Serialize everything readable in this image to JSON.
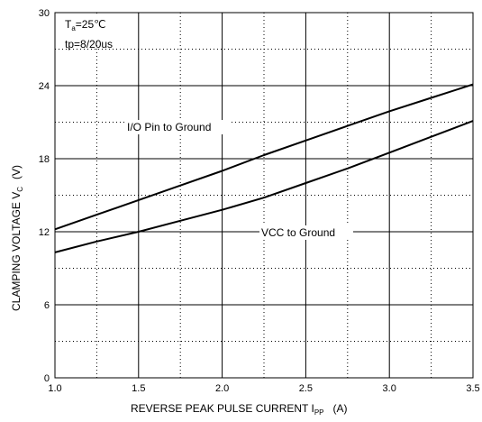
{
  "chart_data": {
    "type": "line",
    "title": "",
    "xlabel": {
      "text": "REVERSE PEAK PULSE CURRENT  I",
      "sub": "PP",
      "unit": "(A)"
    },
    "ylabel": {
      "text": "CLAMPING VOLTAGE  V",
      "sub": "C",
      "unit": "(V)"
    },
    "xlim": [
      1.0,
      3.5
    ],
    "ylim": [
      0,
      30
    ],
    "x_major_ticks": [
      1.0,
      1.5,
      2.0,
      2.5,
      3.0,
      3.5
    ],
    "x_tick_labels": [
      "1.0",
      "1.5",
      "2.0",
      "2.5",
      "3.0",
      "3.5"
    ],
    "x_minor_ticks": [
      1.25,
      1.75,
      2.25,
      2.75,
      3.25
    ],
    "y_major_ticks": [
      0,
      6,
      12,
      18,
      24,
      30
    ],
    "y_tick_labels": [
      "0",
      "6",
      "12",
      "18",
      "24",
      "30"
    ],
    "y_minor_ticks": [
      3,
      9,
      15,
      21,
      27
    ],
    "grid": true,
    "legend": "none",
    "series": [
      {
        "name": "I/O Pin to Ground",
        "x": [
          1.0,
          1.25,
          1.5,
          1.75,
          2.0,
          2.25,
          2.5,
          2.75,
          3.0,
          3.25,
          3.5
        ],
        "y": [
          12.2,
          13.4,
          14.6,
          15.8,
          17.0,
          18.3,
          19.5,
          20.7,
          21.9,
          23.0,
          24.1
        ]
      },
      {
        "name": "VCC to Ground",
        "x": [
          1.0,
          1.25,
          1.5,
          1.75,
          2.0,
          2.25,
          2.5,
          2.75,
          3.0,
          3.25,
          3.5
        ],
        "y": [
          10.3,
          11.2,
          12.0,
          12.9,
          13.8,
          14.8,
          16.0,
          17.2,
          18.5,
          19.8,
          21.1
        ]
      }
    ],
    "annotations": {
      "ta_main": "T",
      "ta_sub": "a",
      "ta_rest": "=25℃",
      "tp": "tp=8/20us",
      "io_label": "I/O Pin to Ground",
      "vcc_label": "VCC to Ground"
    }
  }
}
